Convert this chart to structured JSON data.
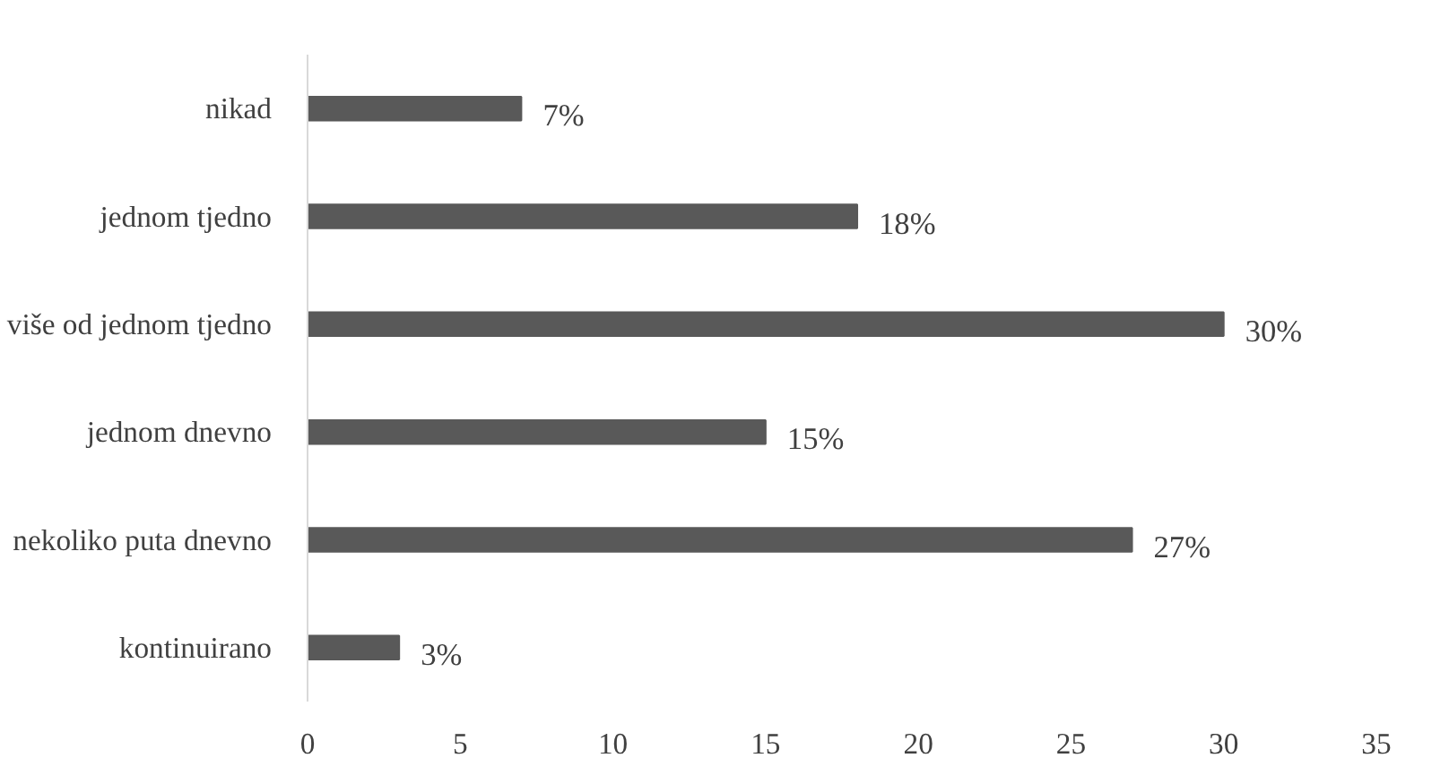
{
  "chart_data": {
    "type": "bar",
    "orientation": "horizontal",
    "categories": [
      "nikad",
      "jednom tjedno",
      "više od jednom tjedno",
      "jednom dnevno",
      "nekoliko puta dnevno",
      "kontinuirano"
    ],
    "values": [
      7,
      18,
      30,
      15,
      27,
      3
    ],
    "value_labels": [
      "7%",
      "18%",
      "30%",
      "15%",
      "27%",
      "3%"
    ],
    "color": "#595959",
    "xlim": [
      0,
      35
    ],
    "xticks": [
      0,
      5,
      10,
      15,
      20,
      25,
      30,
      35
    ],
    "grid": false
  }
}
